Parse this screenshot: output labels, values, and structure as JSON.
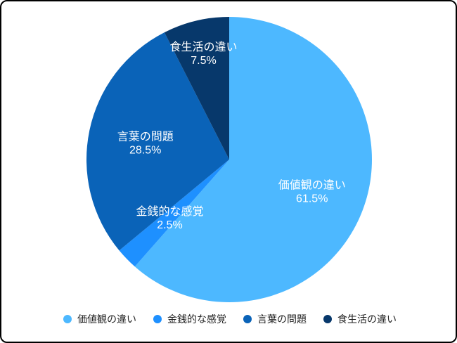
{
  "chart_data": {
    "type": "pie",
    "start_angle": "12 o'clock",
    "direction": "clockwise",
    "legend_position": "bottom",
    "slices": [
      {
        "label": "価値観の違い",
        "value": 61.5,
        "display": "61.5%",
        "color": "#4db8ff"
      },
      {
        "label": "金銭的な感覚",
        "value": 2.5,
        "display": "2.5%",
        "color": "#1e90ff"
      },
      {
        "label": "言葉の問題",
        "value": 28.5,
        "display": "28.5%",
        "color": "#0a63b8"
      },
      {
        "label": "食生活の違い",
        "value": 7.5,
        "display": "7.5%",
        "color": "#07386b"
      }
    ]
  }
}
